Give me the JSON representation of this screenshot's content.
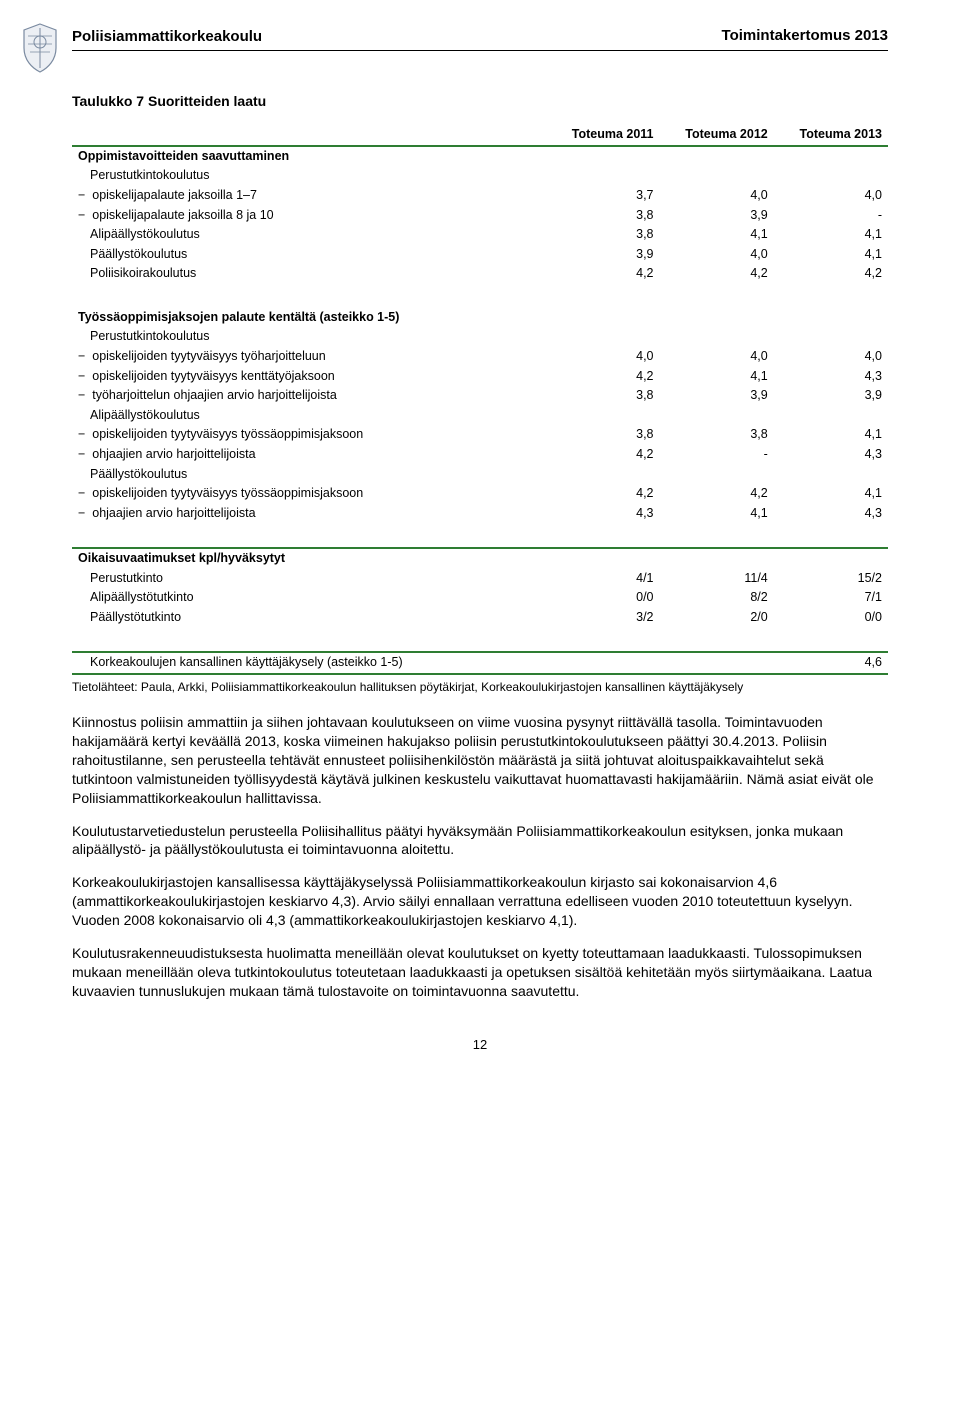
{
  "header": {
    "institution": "Poliisiammattikorkeakoulu",
    "doc_title": "Toimintakertomus 2013"
  },
  "logo": {
    "stroke": "#7a8aa0",
    "fill": "#d8dde6"
  },
  "table": {
    "title": "Taulukko 7 Suoritteiden laatu",
    "border_color": "#2e7d32",
    "columns": [
      "",
      "Toteuma 2011",
      "Toteuma 2012",
      "Toteuma 2013"
    ],
    "rows": [
      {
        "type": "section",
        "label": "Oppimistavoitteiden saavuttaminen"
      },
      {
        "type": "plain",
        "label": "Perustutkintokoulutus"
      },
      {
        "type": "indent",
        "label": "opiskelijapalaute jaksoilla 1–7",
        "v": [
          "3,7",
          "4,0",
          "4,0"
        ]
      },
      {
        "type": "indent",
        "label": "opiskelijapalaute jaksoilla 8 ja 10",
        "v": [
          "3,8",
          "3,9",
          "-"
        ]
      },
      {
        "type": "plain",
        "label": "Alipäällystökoulutus",
        "v": [
          "3,8",
          "4,1",
          "4,1"
        ]
      },
      {
        "type": "plain",
        "label": "Päällystökoulutus",
        "v": [
          "3,9",
          "4,0",
          "4,1"
        ]
      },
      {
        "type": "plain",
        "label": "Poliisikoirakoulutus",
        "v": [
          "4,2",
          "4,2",
          "4,2"
        ]
      },
      {
        "type": "spacer"
      },
      {
        "type": "section",
        "label": "Työssäoppimisjaksojen palaute kentältä (asteikko 1-5)"
      },
      {
        "type": "plain",
        "label": "Perustutkintokoulutus"
      },
      {
        "type": "indent",
        "label": "opiskelijoiden tyytyväisyys työharjoitteluun",
        "v": [
          "4,0",
          "4,0",
          "4,0"
        ]
      },
      {
        "type": "indent",
        "label": "opiskelijoiden tyytyväisyys kenttätyöjaksoon",
        "v": [
          "4,2",
          "4,1",
          "4,3"
        ]
      },
      {
        "type": "indent",
        "label": "työharjoittelun ohjaajien arvio harjoittelijoista",
        "v": [
          "3,8",
          "3,9",
          "3,9"
        ]
      },
      {
        "type": "plain",
        "label": "Alipäällystökoulutus"
      },
      {
        "type": "indent",
        "label": "opiskelijoiden tyytyväisyys työssäoppimisjaksoon",
        "v": [
          "3,8",
          "3,8",
          "4,1"
        ]
      },
      {
        "type": "indent",
        "label": "ohjaajien arvio harjoittelijoista",
        "v": [
          "4,2",
          "-",
          "4,3"
        ]
      },
      {
        "type": "plain",
        "label": "Päällystökoulutus"
      },
      {
        "type": "indent",
        "label": "opiskelijoiden tyytyväisyys työssäoppimisjaksoon",
        "v": [
          "4,2",
          "4,2",
          "4,1"
        ]
      },
      {
        "type": "indent",
        "label": "ohjaajien arvio harjoittelijoista",
        "v": [
          "4,3",
          "4,1",
          "4,3"
        ]
      },
      {
        "type": "spacer"
      },
      {
        "type": "section",
        "label": "Oikaisuvaatimukset kpl/hyväksytyt",
        "green_top": true
      },
      {
        "type": "plain",
        "label": "Perustutkinto",
        "v": [
          "4/1",
          "11/4",
          "15/2"
        ]
      },
      {
        "type": "plain",
        "label": "Alipäällystötutkinto",
        "v": [
          "0/0",
          "8/2",
          "7/1"
        ]
      },
      {
        "type": "plain",
        "label": "Päällystötutkinto",
        "v": [
          "3/2",
          "2/0",
          "0/0"
        ]
      },
      {
        "type": "spacer"
      },
      {
        "type": "plain",
        "label": "Korkeakoulujen kansallinen käyttäjäkysely (asteikko 1-5)",
        "v": [
          "",
          "",
          "4,6"
        ],
        "green_top": true,
        "green_bottom": true
      }
    ]
  },
  "sources": "Tietolähteet: Paula, Arkki, Poliisiammattikorkeakoulun hallituksen pöytäkirjat, Korkeakoulukirjastojen kansallinen käyttäjäkysely",
  "paragraphs": [
    "Kiinnostus poliisin ammattiin ja siihen johtavaan koulutukseen on viime vuosina pysynyt riittävällä tasolla. Toimintavuoden hakijamäärä kertyi keväällä 2013, koska viimeinen hakujakso poliisin perustutkintokoulutukseen päättyi 30.4.2013. Poliisin rahoitustilanne, sen perusteella tehtävät ennusteet poliisihenkilöstön määrästä ja siitä johtuvat aloituspaikkavaihtelut sekä tutkintoon valmistuneiden työllisyydestä käytävä julkinen keskustelu vaikuttavat huomattavasti hakijamääriin. Nämä asiat eivät ole Poliisiammattikorkeakoulun hallittavissa.",
    "Koulutustarvetiedustelun perusteella Poliisihallitus päätyi hyväksymään Poliisiammattikorkeakoulun esityksen, jonka mukaan alipäällystö- ja päällystökoulutusta ei toimintavuonna aloitettu.",
    "Korkeakoulukirjastojen kansallisessa käyttäjäkyselyssä Poliisiammattikorkeakoulun kirjasto sai kokonaisarvion 4,6 (ammattikorkeakoulukirjastojen keskiarvo 4,3). Arvio säilyi ennallaan verrattuna edelliseen vuoden 2010 toteutettuun kyselyyn.  Vuoden 2008 kokonaisarvio oli 4,3 (ammattikorkeakoulukirjastojen keskiarvo 4,1).",
    "Koulutusrakenneuudistuksesta huolimatta meneillään olevat koulutukset on kyetty toteuttamaan laadukkaasti. Tulossopimuksen mukaan meneillään oleva tutkintokoulutus toteutetaan laadukkaasti ja opetuksen sisältöä kehitetään myös siirtymäaikana. Laatua kuvaavien tunnuslukujen mukaan tämä tulostavoite on toimintavuonna saavutettu."
  ],
  "page_number": "12"
}
